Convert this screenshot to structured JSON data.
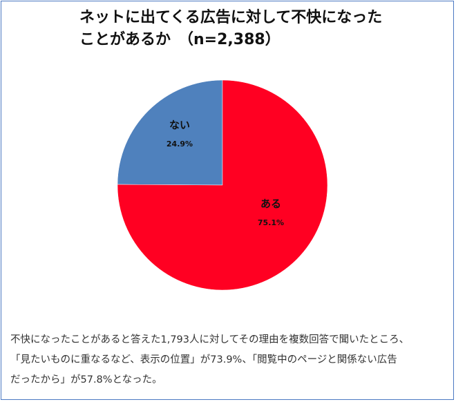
{
  "title": {
    "line1": "ネットに出てくる広告に対して不快になった",
    "line2": "ことがあるか　（n=2,388）"
  },
  "chart_data": {
    "type": "pie",
    "title": "ネットに出てくる広告に対して不快になったことがあるか　（n=2,388）",
    "slices": [
      {
        "label": "ない",
        "value": 24.9,
        "value_label": "24.9%",
        "color": "#4f81bd"
      },
      {
        "label": "ある",
        "value": 75.1,
        "value_label": "75.1%",
        "color": "#ff0022"
      }
    ]
  },
  "caption": {
    "line1": "不快になったことがあると答えた1,793人に対してその理由を複数回答で聞いたところ、",
    "line2": "「見たいものに重なるなど、表示の位置」が73.9%、「閲覧中のページと関係ない広告",
    "line3": "だったから」が57.8%となった。"
  }
}
